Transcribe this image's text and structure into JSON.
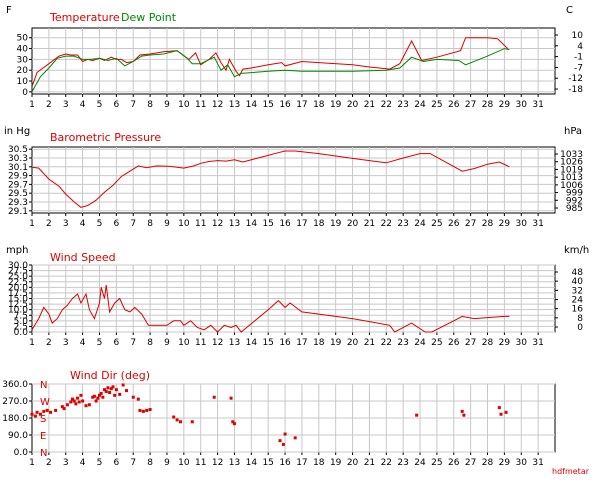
{
  "colors": {
    "temperature": "#dd0000",
    "dew_point": "#008800",
    "pressure": "#dd0000",
    "wind": "#dd0000",
    "grid": "#c8c8c8",
    "axis": "#000000"
  },
  "footer": "hdfmetar",
  "chart_data": [
    {
      "type": "line",
      "legend": [
        "Temperature",
        "Dew Point"
      ],
      "left_unit": "F",
      "right_unit": "C",
      "xlim": [
        1,
        32
      ],
      "x_ticks": [
        1,
        2,
        3,
        4,
        5,
        6,
        7,
        8,
        9,
        10,
        11,
        12,
        13,
        14,
        15,
        16,
        17,
        18,
        19,
        20,
        21,
        22,
        23,
        24,
        25,
        26,
        27,
        28,
        29,
        30,
        31
      ],
      "ylim": [
        -2,
        59
      ],
      "y_ticks": [
        0,
        10,
        20,
        30,
        40,
        50
      ],
      "right_ticks": [
        "10",
        "4",
        "-1",
        "-7",
        "-12",
        "-18"
      ],
      "grid": true,
      "series": [
        {
          "name": "Temperature",
          "points": [
            [
              1,
              5
            ],
            [
              1.3,
              18
            ],
            [
              2,
              26
            ],
            [
              2.6,
              33
            ],
            [
              3,
              35
            ],
            [
              3.3,
              34
            ],
            [
              3.7,
              34
            ],
            [
              4,
              28
            ],
            [
              4.3,
              30
            ],
            [
              4.6,
              29
            ],
            [
              5,
              31
            ],
            [
              5.3,
              29
            ],
            [
              5.7,
              32
            ],
            [
              6,
              30
            ],
            [
              6.3,
              30
            ],
            [
              6.6,
              27
            ],
            [
              7,
              28
            ],
            [
              7.4,
              34
            ],
            [
              8,
              35
            ],
            [
              8.8,
              37
            ],
            [
              9.6,
              38
            ],
            [
              10.3,
              30
            ],
            [
              10.7,
              36
            ],
            [
              11,
              25
            ],
            [
              11.5,
              30
            ],
            [
              11.9,
              36
            ],
            [
              12.2,
              27
            ],
            [
              12.5,
              20
            ],
            [
              12.7,
              30
            ],
            [
              13.1,
              19
            ],
            [
              13.3,
              15
            ],
            [
              13.5,
              21
            ],
            [
              14,
              22
            ],
            [
              15,
              25
            ],
            [
              15.8,
              27
            ],
            [
              16,
              24
            ],
            [
              17,
              28
            ],
            [
              18,
              27
            ],
            [
              20,
              25
            ],
            [
              21,
              23
            ],
            [
              22.2,
              21
            ],
            [
              22.8,
              26
            ],
            [
              23.5,
              47
            ],
            [
              24.1,
              29
            ],
            [
              25,
              32
            ],
            [
              26.4,
              38
            ],
            [
              26.7,
              50
            ],
            [
              28,
              50
            ],
            [
              28.6,
              49
            ],
            [
              29.2,
              40
            ]
          ]
        },
        {
          "name": "Dew Point",
          "points": [
            [
              1,
              0
            ],
            [
              1.5,
              14
            ],
            [
              2,
              22
            ],
            [
              2.5,
              31
            ],
            [
              3,
              33
            ],
            [
              3.5,
              33
            ],
            [
              4,
              30
            ],
            [
              4.5,
              30
            ],
            [
              5,
              31
            ],
            [
              5.5,
              29
            ],
            [
              6,
              31
            ],
            [
              6.5,
              24
            ],
            [
              7,
              28
            ],
            [
              7.5,
              33
            ],
            [
              8,
              34
            ],
            [
              8.8,
              35
            ],
            [
              9.6,
              38
            ],
            [
              10.2,
              31
            ],
            [
              10.5,
              26
            ],
            [
              11,
              26
            ],
            [
              11.8,
              32
            ],
            [
              12.2,
              20
            ],
            [
              12.6,
              25
            ],
            [
              13,
              14
            ],
            [
              13.4,
              17
            ],
            [
              15,
              19
            ],
            [
              16,
              20
            ],
            [
              17,
              19
            ],
            [
              18,
              19
            ],
            [
              20,
              19
            ],
            [
              22,
              20
            ],
            [
              22.8,
              22
            ],
            [
              23.5,
              32
            ],
            [
              24.2,
              28
            ],
            [
              25,
              30
            ],
            [
              26.3,
              29
            ],
            [
              26.7,
              25
            ],
            [
              28,
              33
            ],
            [
              29,
              40
            ],
            [
              29.3,
              39
            ]
          ]
        }
      ]
    },
    {
      "type": "line",
      "title": "Barometric Pressure",
      "left_unit": "in Hg",
      "right_unit": "hPa",
      "xlim": [
        1,
        32
      ],
      "x_ticks": [
        1,
        2,
        3,
        4,
        5,
        6,
        7,
        8,
        9,
        10,
        11,
        12,
        13,
        14,
        15,
        16,
        17,
        18,
        19,
        20,
        21,
        22,
        23,
        24,
        25,
        26,
        27,
        28,
        29,
        30,
        31
      ],
      "ylim": [
        29.05,
        30.55
      ],
      "y_ticks": [
        29.1,
        29.3,
        29.5,
        29.7,
        29.9,
        30.1,
        30.3,
        30.5
      ],
      "right_ticks": [
        "1033",
        "1026",
        "1019",
        "1013",
        "1006",
        "999",
        "992",
        "985"
      ],
      "grid": true,
      "series": [
        {
          "name": "Barometric Pressure",
          "points": [
            [
              1,
              30.09
            ],
            [
              1.4,
              30.07
            ],
            [
              2,
              29.82
            ],
            [
              2.6,
              29.66
            ],
            [
              3,
              29.48
            ],
            [
              3.5,
              29.3
            ],
            [
              3.9,
              29.18
            ],
            [
              4.3,
              29.22
            ],
            [
              4.8,
              29.34
            ],
            [
              5.3,
              29.52
            ],
            [
              5.8,
              29.68
            ],
            [
              6.3,
              29.88
            ],
            [
              6.8,
              30.0
            ],
            [
              7.3,
              30.12
            ],
            [
              7.8,
              30.08
            ],
            [
              8.4,
              30.12
            ],
            [
              9.2,
              30.11
            ],
            [
              10,
              30.07
            ],
            [
              10.6,
              30.12
            ],
            [
              11,
              30.18
            ],
            [
              11.5,
              30.22
            ],
            [
              12,
              30.24
            ],
            [
              12.5,
              30.23
            ],
            [
              13,
              30.26
            ],
            [
              13.5,
              30.21
            ],
            [
              14.2,
              30.28
            ],
            [
              15,
              30.36
            ],
            [
              15.6,
              30.42
            ],
            [
              16,
              30.46
            ],
            [
              16.6,
              30.46
            ],
            [
              18,
              30.4
            ],
            [
              20,
              30.29
            ],
            [
              22,
              30.19
            ],
            [
              23,
              30.3
            ],
            [
              24,
              30.4
            ],
            [
              24.6,
              30.4
            ],
            [
              26.5,
              30.0
            ],
            [
              27.2,
              30.06
            ],
            [
              28,
              30.16
            ],
            [
              28.7,
              30.21
            ],
            [
              29.3,
              30.1
            ]
          ]
        }
      ]
    },
    {
      "type": "line",
      "title": "Wind Speed",
      "left_unit": "mph",
      "right_unit": "km/h",
      "xlim": [
        1,
        32
      ],
      "x_ticks": [
        1,
        2,
        3,
        4,
        5,
        6,
        7,
        8,
        9,
        10,
        11,
        12,
        13,
        14,
        15,
        16,
        17,
        18,
        19,
        20,
        21,
        22,
        23,
        24,
        25,
        26,
        27,
        28,
        29,
        30,
        31
      ],
      "ylim": [
        0,
        30
      ],
      "y_ticks": [
        0.0,
        2.5,
        5.0,
        7.5,
        10.0,
        12.5,
        15.0,
        17.5,
        20.0,
        22.5,
        25.0,
        27.5,
        30.0
      ],
      "right_ticks": [
        "48",
        "40",
        "32",
        "24",
        "16",
        "8",
        "0"
      ],
      "grid": true,
      "series": [
        {
          "name": "Wind Speed",
          "points": [
            [
              1,
              1
            ],
            [
              1.4,
              6
            ],
            [
              1.7,
              11
            ],
            [
              2,
              8
            ],
            [
              2.2,
              4
            ],
            [
              2.5,
              6
            ],
            [
              2.8,
              10
            ],
            [
              3.1,
              12
            ],
            [
              3.4,
              15
            ],
            [
              3.7,
              17
            ],
            [
              3.9,
              13
            ],
            [
              4.2,
              17
            ],
            [
              4.4,
              10
            ],
            [
              4.7,
              6
            ],
            [
              5,
              13
            ],
            [
              5.1,
              20
            ],
            [
              5.3,
              15
            ],
            [
              5.4,
              21
            ],
            [
              5.6,
              9
            ],
            [
              5.9,
              13
            ],
            [
              6.2,
              15
            ],
            [
              6.5,
              10
            ],
            [
              6.8,
              9
            ],
            [
              7.1,
              11
            ],
            [
              7.5,
              8
            ],
            [
              7.9,
              3
            ],
            [
              8.5,
              3
            ],
            [
              9,
              3
            ],
            [
              9.4,
              5
            ],
            [
              9.8,
              5
            ],
            [
              10,
              3
            ],
            [
              10.4,
              5
            ],
            [
              10.8,
              2
            ],
            [
              11.2,
              1
            ],
            [
              11.6,
              3
            ],
            [
              12,
              0
            ],
            [
              12.4,
              3
            ],
            [
              12.8,
              2
            ],
            [
              13.1,
              3
            ],
            [
              13.4,
              0
            ],
            [
              15,
              10
            ],
            [
              15.6,
              14
            ],
            [
              16,
              11
            ],
            [
              16.3,
              13
            ],
            [
              17,
              9
            ],
            [
              20,
              6
            ],
            [
              22.2,
              3
            ],
            [
              22.5,
              0
            ],
            [
              23.5,
              4
            ],
            [
              24.3,
              0
            ],
            [
              24.7,
              0
            ],
            [
              26,
              5
            ],
            [
              26.5,
              7
            ],
            [
              27.2,
              6
            ],
            [
              29,
              7
            ],
            [
              29.3,
              7
            ]
          ]
        }
      ]
    },
    {
      "type": "scatter",
      "title": "Wind Dir (deg)",
      "xlim": [
        1,
        32
      ],
      "x_ticks": [
        1,
        2,
        3,
        4,
        5,
        6,
        7,
        8,
        9,
        10,
        11,
        12,
        13,
        14,
        15,
        16,
        17,
        18,
        19,
        20,
        21,
        22,
        23,
        24,
        25,
        26,
        27,
        28,
        29,
        30,
        31
      ],
      "ylim": [
        0,
        360
      ],
      "y_ticks": [
        0.0,
        90.0,
        180.0,
        270.0,
        360.0
      ],
      "compass_labels": [
        {
          "label": "N",
          "deg": 360
        },
        {
          "label": "W",
          "deg": 270
        },
        {
          "label": "S",
          "deg": 180
        },
        {
          "label": "E",
          "deg": 90
        },
        {
          "label": "N",
          "deg": 0
        }
      ],
      "grid": true,
      "points": [
        [
          1,
          200
        ],
        [
          1.2,
          190
        ],
        [
          1.3,
          210
        ],
        [
          1.5,
          200
        ],
        [
          1.7,
          215
        ],
        [
          1.9,
          220
        ],
        [
          2.1,
          210
        ],
        [
          2.4,
          220
        ],
        [
          2.8,
          240
        ],
        [
          2.9,
          230
        ],
        [
          3.1,
          250
        ],
        [
          3.3,
          265
        ],
        [
          3.4,
          280
        ],
        [
          3.5,
          270
        ],
        [
          3.6,
          255
        ],
        [
          3.7,
          285
        ],
        [
          3.8,
          265
        ],
        [
          3.9,
          300
        ],
        [
          4,
          270
        ],
        [
          4.2,
          245
        ],
        [
          4.4,
          250
        ],
        [
          4.6,
          290
        ],
        [
          4.7,
          295
        ],
        [
          4.8,
          270
        ],
        [
          4.9,
          285
        ],
        [
          5,
          300
        ],
        [
          5.1,
          310
        ],
        [
          5.2,
          290
        ],
        [
          5.3,
          330
        ],
        [
          5.4,
          320
        ],
        [
          5.5,
          340
        ],
        [
          5.6,
          315
        ],
        [
          5.7,
          335
        ],
        [
          5.8,
          345
        ],
        [
          5.9,
          300
        ],
        [
          6,
          330
        ],
        [
          6.2,
          305
        ],
        [
          6.4,
          355
        ],
        [
          6.6,
          325
        ],
        [
          7,
          290
        ],
        [
          7.3,
          280
        ],
        [
          7.4,
          220
        ],
        [
          7.6,
          215
        ],
        [
          7.8,
          220
        ],
        [
          8,
          225
        ],
        [
          9.4,
          185
        ],
        [
          9.6,
          170
        ],
        [
          9.8,
          160
        ],
        [
          10.5,
          160
        ],
        [
          11.8,
          290
        ],
        [
          12.8,
          285
        ],
        [
          12.9,
          160
        ],
        [
          13,
          150
        ],
        [
          15.7,
          60
        ],
        [
          15.9,
          40
        ],
        [
          16,
          95
        ],
        [
          16.6,
          75
        ],
        [
          23.8,
          195
        ],
        [
          26.5,
          215
        ],
        [
          26.6,
          195
        ],
        [
          28.7,
          235
        ],
        [
          28.8,
          200
        ],
        [
          29.1,
          210
        ]
      ]
    }
  ]
}
